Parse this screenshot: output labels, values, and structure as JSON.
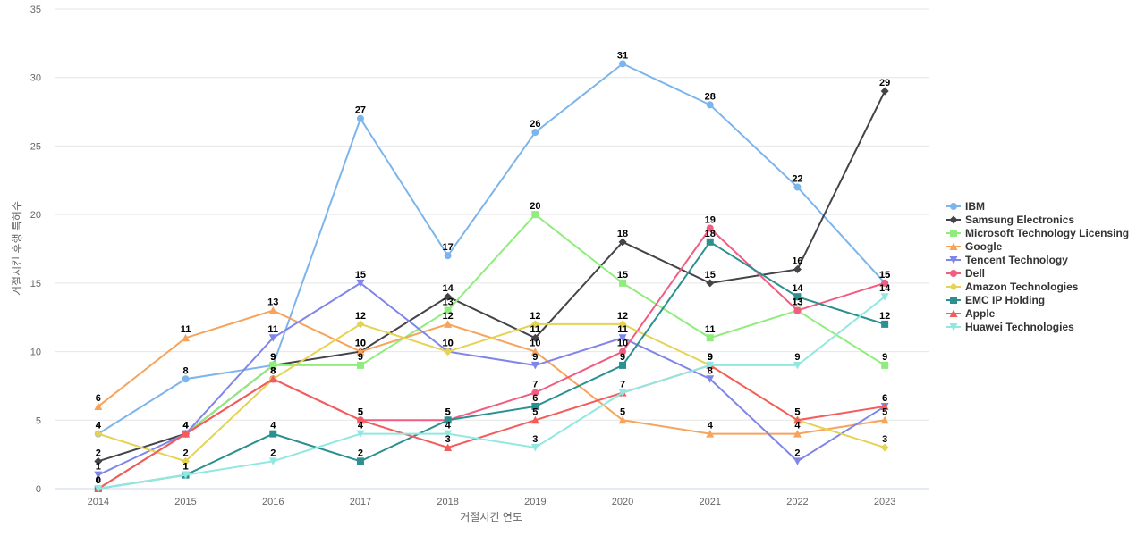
{
  "chart_data": {
    "type": "line",
    "title": "",
    "xlabel": "거절시킨 연도",
    "ylabel": "거절시킨 후행 특허수",
    "categories": [
      "2014",
      "2015",
      "2016",
      "2017",
      "2018",
      "2019",
      "2020",
      "2021",
      "2022",
      "2023"
    ],
    "ylim": [
      0,
      35
    ],
    "yticks": [
      0,
      5,
      10,
      15,
      20,
      25,
      30,
      35
    ],
    "grid": true,
    "legend_position": "right",
    "series": [
      {
        "name": "IBM",
        "color": "#7cb5ec",
        "marker": "circle",
        "values": [
          4,
          8,
          9,
          27,
          17,
          26,
          31,
          28,
          22,
          15
        ]
      },
      {
        "name": "Samsung Electronics",
        "color": "#434348",
        "marker": "diamond",
        "values": [
          2,
          4,
          9,
          10,
          14,
          11,
          18,
          15,
          16,
          29
        ]
      },
      {
        "name": "Microsoft Technology Licensing",
        "color": "#90ed7d",
        "marker": "square",
        "values": [
          0,
          4,
          9,
          9,
          13,
          20,
          15,
          11,
          13,
          9
        ]
      },
      {
        "name": "Google",
        "color": "#f7a35c",
        "marker": "triangle",
        "values": [
          6,
          11,
          13,
          10,
          12,
          10,
          5,
          4,
          4,
          5
        ]
      },
      {
        "name": "Tencent Technology",
        "color": "#8085e9",
        "marker": "triangle-down",
        "values": [
          1,
          4,
          11,
          15,
          10,
          9,
          11,
          8,
          2,
          6
        ]
      },
      {
        "name": "Dell",
        "color": "#f15c80",
        "marker": "circle",
        "values": [
          0,
          4,
          8,
          5,
          5,
          7,
          10,
          19,
          13,
          15
        ]
      },
      {
        "name": "Amazon Technologies",
        "color": "#e4d354",
        "marker": "diamond",
        "values": [
          4,
          2,
          8,
          12,
          10,
          12,
          12,
          9,
          5,
          3
        ]
      },
      {
        "name": "EMC IP Holding",
        "color": "#2b908f",
        "marker": "square",
        "values": [
          0,
          1,
          4,
          2,
          5,
          6,
          9,
          18,
          14,
          12
        ]
      },
      {
        "name": "Apple",
        "color": "#f45b5b",
        "marker": "triangle",
        "values": [
          0,
          4,
          8,
          5,
          3,
          5,
          7,
          9,
          5,
          6
        ]
      },
      {
        "name": "Huawei Technologies",
        "color": "#91e8e1",
        "marker": "triangle-down",
        "values": [
          0,
          1,
          2,
          4,
          4,
          3,
          7,
          9,
          9,
          14
        ]
      }
    ]
  }
}
